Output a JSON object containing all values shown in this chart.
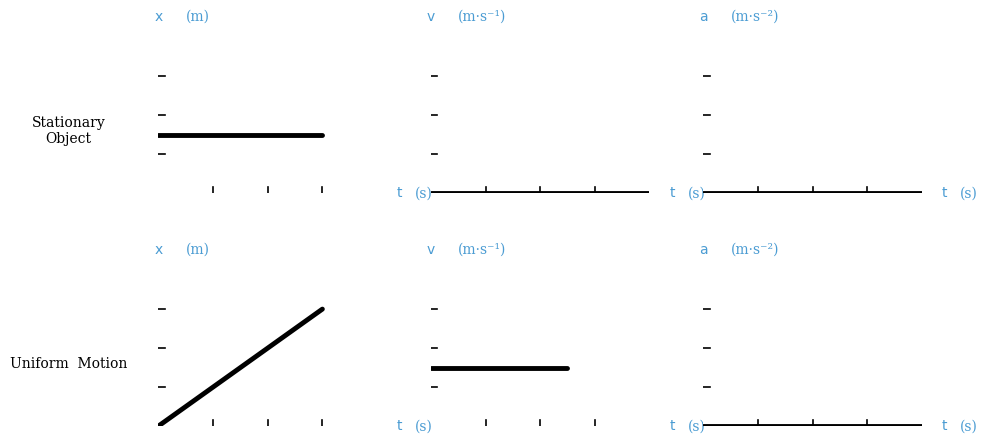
{
  "background_color": "#ffffff",
  "text_color": "#000000",
  "line_color": "#000000",
  "axis_color": "#000000",
  "label_color": "#4b9cd3",
  "rows": [
    {
      "label": "Stationary\nObject",
      "graphs": [
        {
          "ylabel": "x",
          "yunits": "(m)",
          "xlabel": "t",
          "xunits": "(s)",
          "data_type": "horizontal_line",
          "x": [
            0,
            3
          ],
          "y": [
            1.5,
            1.5
          ]
        },
        {
          "ylabel": "v",
          "yunits": "(m·s⁻¹)",
          "xlabel": "t",
          "xunits": "(s)",
          "data_type": "zero_line",
          "x": [
            0,
            4
          ],
          "y": [
            0,
            0
          ]
        },
        {
          "ylabel": "a",
          "yunits": "(m·s⁻²)",
          "xlabel": "t",
          "xunits": "(s)",
          "data_type": "zero_line",
          "x": [
            0,
            4
          ],
          "y": [
            0,
            0
          ]
        }
      ]
    },
    {
      "label": "Uniform  Motion",
      "graphs": [
        {
          "ylabel": "x",
          "yunits": "(m)",
          "xlabel": "t",
          "xunits": "(s)",
          "data_type": "diagonal_line",
          "x": [
            0,
            3
          ],
          "y": [
            0,
            3
          ]
        },
        {
          "ylabel": "v",
          "yunits": "(m·s⁻¹)",
          "xlabel": "t",
          "xunits": "(s)",
          "data_type": "horizontal_line",
          "x": [
            0,
            2.5
          ],
          "y": [
            1.5,
            1.5
          ]
        },
        {
          "ylabel": "a",
          "yunits": "(m·s⁻²)",
          "xlabel": "t",
          "xunits": "(s)",
          "data_type": "zero_line",
          "x": [
            0,
            4
          ],
          "y": [
            0,
            0
          ]
        }
      ]
    }
  ],
  "tick_count": 3,
  "ylim": [
    0,
    4
  ],
  "xlim": [
    0,
    4
  ],
  "graph_linewidth": 3.5,
  "axis_linewidth": 1.5
}
